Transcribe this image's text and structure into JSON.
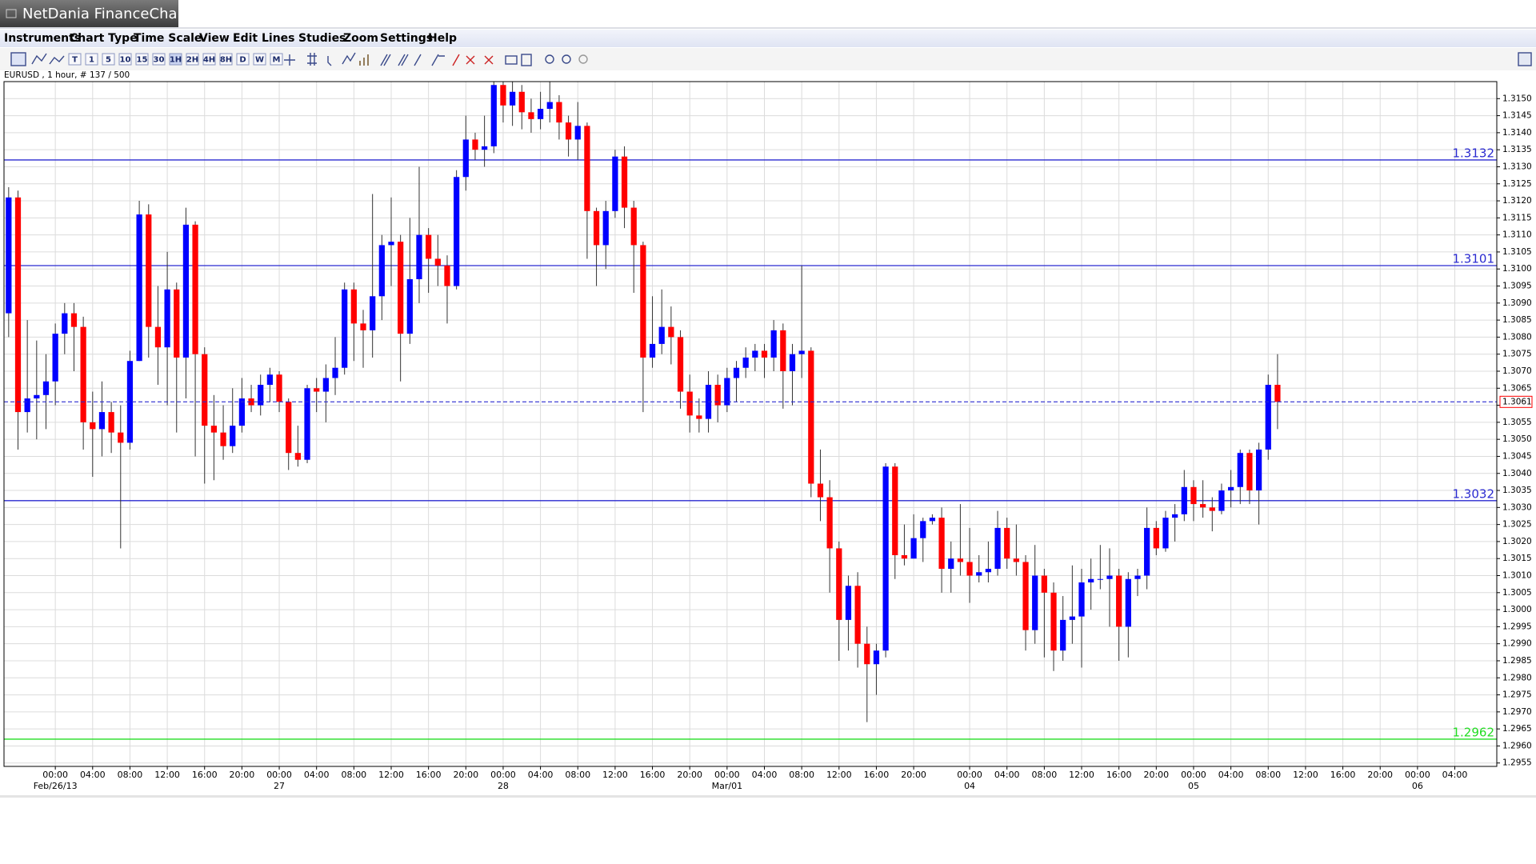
{
  "window": {
    "title": "NetDania FinanceChart"
  },
  "menu": [
    "Instruments",
    "Chart Type",
    "Time Scale",
    "View",
    "Edit",
    "Lines",
    "Studies",
    "Zoom",
    "Settings",
    "Help"
  ],
  "toolbar": [
    "T",
    "1",
    "5",
    "10",
    "15",
    "30",
    "1H",
    "2H",
    "4H",
    "8H",
    "D",
    "W",
    "M"
  ],
  "chart_data": {
    "type": "candlestick",
    "subtitle": "EURUSD , 1 hour, # 137 / 500",
    "up_color": "#0000ff",
    "down_color": "#ff0000",
    "grid": true,
    "open": [
      1.3087,
      1.3121,
      1.3058,
      1.3062,
      1.3063,
      1.3067,
      1.3081,
      1.3087,
      1.3083,
      1.3055,
      1.3053,
      1.3058,
      1.3052,
      1.3049,
      1.3073,
      1.3116,
      1.3083,
      1.3077,
      1.3094,
      1.3074,
      1.3113,
      1.3075,
      1.3054,
      1.3052,
      1.3048,
      1.3054,
      1.3062,
      1.306,
      1.3066,
      1.3069,
      1.3061,
      1.3046,
      1.3044,
      1.3065,
      1.3064,
      1.3068,
      1.3071,
      1.3094,
      1.3084,
      1.3082,
      1.3092,
      1.3107,
      1.3108,
      1.3081,
      1.3097,
      1.311,
      1.3103,
      1.3101,
      1.3095,
      1.3127,
      1.3138,
      1.3135,
      1.3136,
      1.3154,
      1.3148,
      1.3152,
      1.3146,
      1.3144,
      1.3147,
      1.3149,
      1.3143,
      1.3138,
      1.3142,
      1.3117,
      1.3107,
      1.3117,
      1.3133,
      1.3118,
      1.3107,
      1.3074,
      1.3078,
      1.3083,
      1.308,
      1.3064,
      1.3057,
      1.3056,
      1.3066,
      1.306,
      1.3068,
      1.3071,
      1.3074,
      1.3076,
      1.3074,
      1.3082,
      1.307,
      1.3075,
      1.3076,
      1.3037,
      1.3033,
      1.3018,
      1.2997,
      1.3007,
      1.299,
      1.2984,
      1.2988,
      1.3042,
      1.3016,
      1.3015,
      1.3021,
      1.3026,
      1.3027,
      1.3012,
      1.3015,
      1.3014,
      1.301,
      1.3011,
      1.3012,
      1.3024,
      1.3015,
      1.3014,
      1.2994,
      1.301,
      1.3005,
      1.2988,
      1.2997,
      1.2998,
      1.3008,
      1.3009,
      1.3009,
      1.301,
      1.2995,
      1.3009,
      1.301,
      1.3024,
      1.3018,
      1.3027,
      1.3028,
      1.3036,
      1.3031,
      1.303,
      1.3029,
      1.3035,
      1.3036,
      1.3046,
      1.3035,
      1.3047,
      1.3066
    ],
    "high": [
      1.3124,
      1.3123,
      1.3085,
      1.3079,
      1.3075,
      1.3084,
      1.309,
      1.309,
      1.3086,
      1.3064,
      1.3067,
      1.3061,
      1.306,
      1.3076,
      1.312,
      1.3119,
      1.3095,
      1.3105,
      1.3096,
      1.3118,
      1.3114,
      1.3077,
      1.3063,
      1.306,
      1.3065,
      1.3068,
      1.3066,
      1.3069,
      1.3071,
      1.307,
      1.3062,
      1.3054,
      1.3066,
      1.3068,
      1.3072,
      1.308,
      1.3096,
      1.3096,
      1.3088,
      1.3122,
      1.311,
      1.3121,
      1.311,
      1.3115,
      1.313,
      1.3112,
      1.311,
      1.3104,
      1.3129,
      1.3145,
      1.314,
      1.3145,
      1.3155,
      1.3155,
      1.3155,
      1.3154,
      1.315,
      1.3152,
      1.3155,
      1.3151,
      1.3145,
      1.3149,
      1.3143,
      1.3118,
      1.312,
      1.3135,
      1.3136,
      1.312,
      1.3108,
      1.3092,
      1.3094,
      1.3089,
      1.3082,
      1.3069,
      1.3062,
      1.307,
      1.3069,
      1.3071,
      1.3073,
      1.3077,
      1.3078,
      1.3078,
      1.3085,
      1.3084,
      1.3078,
      1.3101,
      1.3077,
      1.3047,
      1.3038,
      1.302,
      1.301,
      1.3011,
      1.2995,
      1.299,
      1.3043,
      1.3043,
      1.3025,
      1.3028,
      1.3027,
      1.3028,
      1.303,
      1.302,
      1.3031,
      1.3024,
      1.3016,
      1.302,
      1.3029,
      1.3027,
      1.3025,
      1.3016,
      1.3019,
      1.3012,
      1.3008,
      1.3004,
      1.3013,
      1.3012,
      1.3015,
      1.3019,
      1.3018,
      1.3012,
      1.3011,
      1.3012,
      1.303,
      1.3026,
      1.3029,
      1.3031,
      1.3041,
      1.3038,
      1.3038,
      1.3033,
      1.3037,
      1.3041,
      1.3047,
      1.3047,
      1.3049,
      1.3069,
      1.3075
    ],
    "low": [
      1.308,
      1.3047,
      1.3052,
      1.305,
      1.3053,
      1.306,
      1.3075,
      1.307,
      1.3047,
      1.3039,
      1.3045,
      1.3046,
      1.3018,
      1.3047,
      1.3073,
      1.3074,
      1.3066,
      1.306,
      1.3052,
      1.3062,
      1.3045,
      1.3037,
      1.3038,
      1.3044,
      1.3046,
      1.3052,
      1.3058,
      1.3057,
      1.3061,
      1.3058,
      1.3041,
      1.3042,
      1.3043,
      1.3058,
      1.3055,
      1.3063,
      1.3069,
      1.3073,
      1.3071,
      1.3074,
      1.3085,
      1.3095,
      1.3067,
      1.3078,
      1.309,
      1.3093,
      1.3095,
      1.3084,
      1.3094,
      1.3123,
      1.3132,
      1.313,
      1.3134,
      1.3143,
      1.3142,
      1.3141,
      1.314,
      1.3141,
      1.3143,
      1.3138,
      1.3133,
      1.3132,
      1.3103,
      1.3095,
      1.31,
      1.3115,
      1.3112,
      1.3093,
      1.3058,
      1.3071,
      1.3075,
      1.3072,
      1.3059,
      1.3052,
      1.3052,
      1.3052,
      1.3055,
      1.3058,
      1.3061,
      1.3068,
      1.307,
      1.3068,
      1.307,
      1.3059,
      1.306,
      1.3068,
      1.3033,
      1.3026,
      1.3005,
      1.2985,
      1.2988,
      1.2983,
      1.2967,
      1.2975,
      1.2986,
      1.3009,
      1.3013,
      1.3015,
      1.3014,
      1.3025,
      1.3005,
      1.3005,
      1.301,
      1.3002,
      1.3008,
      1.3008,
      1.301,
      1.3012,
      1.301,
      1.2988,
      1.299,
      1.2986,
      1.2982,
      1.2985,
      1.299,
      1.2983,
      1.3,
      1.3006,
      1.2995,
      1.2985,
      1.2986,
      1.3004,
      1.3006,
      1.3016,
      1.3017,
      1.302,
      1.3026,
      1.3026,
      1.3027,
      1.3023,
      1.3028,
      1.303,
      1.3031,
      1.3031,
      1.3025,
      1.3044,
      1.3053
    ],
    "close": [
      1.3121,
      1.3058,
      1.3062,
      1.3063,
      1.3067,
      1.3081,
      1.3087,
      1.3083,
      1.3055,
      1.3053,
      1.3058,
      1.3052,
      1.3049,
      1.3073,
      1.3116,
      1.3083,
      1.3077,
      1.3094,
      1.3074,
      1.3113,
      1.3075,
      1.3054,
      1.3052,
      1.3048,
      1.3054,
      1.3062,
      1.306,
      1.3066,
      1.3069,
      1.3061,
      1.3046,
      1.3044,
      1.3065,
      1.3064,
      1.3068,
      1.3071,
      1.3094,
      1.3084,
      1.3082,
      1.3092,
      1.3107,
      1.3108,
      1.3081,
      1.3097,
      1.311,
      1.3103,
      1.3101,
      1.3095,
      1.3127,
      1.3138,
      1.3135,
      1.3136,
      1.3154,
      1.3148,
      1.3152,
      1.3146,
      1.3144,
      1.3147,
      1.3149,
      1.3143,
      1.3138,
      1.3142,
      1.3117,
      1.3107,
      1.3117,
      1.3133,
      1.3118,
      1.3107,
      1.3074,
      1.3078,
      1.3083,
      1.308,
      1.3064,
      1.3057,
      1.3056,
      1.3066,
      1.306,
      1.3068,
      1.3071,
      1.3074,
      1.3076,
      1.3074,
      1.3082,
      1.307,
      1.3075,
      1.3076,
      1.3037,
      1.3033,
      1.3018,
      1.2997,
      1.3007,
      1.299,
      1.2984,
      1.2988,
      1.3042,
      1.3016,
      1.3015,
      1.3021,
      1.3026,
      1.3027,
      1.3012,
      1.3015,
      1.3014,
      1.301,
      1.3011,
      1.3012,
      1.3024,
      1.3015,
      1.3014,
      1.2994,
      1.301,
      1.3005,
      1.2988,
      1.2997,
      1.2998,
      1.3008,
      1.3009,
      1.3009,
      1.301,
      1.2995,
      1.3009,
      1.301,
      1.3024,
      1.3018,
      1.3027,
      1.3028,
      1.3036,
      1.3031,
      1.303,
      1.3029,
      1.3035,
      1.3036,
      1.3046,
      1.3035,
      1.3047,
      1.3066,
      1.3061
    ],
    "ylim": [
      1.2954,
      1.3155
    ],
    "yticks": [
      1.2955,
      {
        "value": 1.296,
        "label": "1.2960"
      },
      1.2965,
      {
        "value": 1.297,
        "label": "1.2970"
      },
      1.2975,
      {
        "value": 1.298,
        "label": "1.2980"
      },
      1.2985,
      {
        "value": 1.299,
        "label": "1.2990"
      },
      1.2995,
      {
        "value": 1.3,
        "label": "1.3000"
      },
      1.3005,
      {
        "value": 1.301,
        "label": "1.3010"
      },
      1.3015,
      {
        "value": 1.302,
        "label": "1.3020"
      },
      1.3025,
      {
        "value": 1.303,
        "label": "1.3030"
      },
      1.3035,
      {
        "value": 1.304,
        "label": "1.3040"
      },
      1.3045,
      {
        "value": 1.305,
        "label": "1.3050"
      },
      1.3055,
      {
        "value": 1.306,
        "label": "1.3060"
      },
      1.3065,
      {
        "value": 1.307,
        "label": "1.3070"
      },
      1.3075,
      {
        "value": 1.308,
        "label": "1.3080"
      },
      1.3085,
      {
        "value": 1.309,
        "label": "1.3090"
      },
      1.3095,
      {
        "value": 1.31,
        "label": "1.3100"
      },
      1.3105,
      {
        "value": 1.311,
        "label": "1.3110"
      },
      1.3115,
      {
        "value": 1.312,
        "label": "1.3120"
      },
      1.3125,
      {
        "value": 1.313,
        "label": "1.3130"
      },
      1.3135,
      {
        "value": 1.314,
        "label": "1.3140"
      },
      1.3145,
      {
        "value": 1.315,
        "label": "1.3150"
      }
    ],
    "xticks": [
      {
        "value": 5,
        "label": "00:00"
      },
      {
        "value": 9,
        "label": "04:00"
      },
      {
        "value": 13,
        "label": "08:00"
      },
      {
        "value": 17,
        "label": "12:00"
      },
      {
        "value": 21,
        "label": "16:00"
      },
      {
        "value": 25,
        "label": "20:00"
      },
      {
        "value": 29,
        "label": "00:00"
      },
      {
        "value": 33,
        "label": "04:00"
      },
      {
        "value": 37,
        "label": "08:00"
      },
      {
        "value": 41,
        "label": "12:00"
      },
      {
        "value": 45,
        "label": "16:00"
      },
      {
        "value": 49,
        "label": "20:00"
      },
      {
        "value": 53,
        "label": "00:00"
      },
      {
        "value": 57,
        "label": "04:00"
      },
      {
        "value": 61,
        "label": "08:00"
      },
      {
        "value": 65,
        "label": "12:00"
      },
      {
        "value": 69,
        "label": "16:00"
      },
      {
        "value": 73,
        "label": "20:00"
      },
      {
        "value": 77,
        "label": "00:00"
      },
      {
        "value": 81,
        "label": "04:00"
      },
      {
        "value": 85,
        "label": "08:00"
      },
      {
        "value": 89,
        "label": "12:00"
      },
      {
        "value": 93,
        "label": "16:00"
      },
      {
        "value": 97,
        "label": "20:00"
      },
      {
        "value": 103,
        "label": "00:00"
      },
      {
        "value": 107,
        "label": "04:00"
      },
      {
        "value": 111,
        "label": "08:00"
      },
      {
        "value": 115,
        "label": "12:00"
      },
      {
        "value": 119,
        "label": "16:00"
      },
      {
        "value": 123,
        "label": "20:00"
      },
      {
        "value": 127,
        "label": "00:00"
      },
      {
        "value": 131,
        "label": "04:00"
      },
      {
        "value": 135,
        "label": "08:00"
      },
      {
        "value": 139,
        "label": "12:00"
      },
      {
        "value": 143,
        "label": "16:00"
      },
      {
        "value": 147,
        "label": "20:00"
      },
      {
        "value": 151,
        "label": "00:00"
      },
      {
        "value": 155,
        "label": "04:00"
      }
    ],
    "xticks2": [
      {
        "value": 5,
        "label": "Feb/26/13"
      },
      {
        "value": 29,
        "label": "27"
      },
      {
        "value": 53,
        "label": "28"
      },
      {
        "value": 77,
        "label": "Mar/01"
      },
      {
        "value": 103,
        "label": "04"
      },
      {
        "value": 127,
        "label": "05"
      },
      {
        "value": 151,
        "label": "06"
      }
    ],
    "hlines": [
      {
        "value": 1.3132,
        "color": "#2a2ad0"
      },
      {
        "value": 1.3101,
        "color": "#2a2ad0"
      },
      {
        "value": 1.3032,
        "color": "#2a2ad0"
      },
      {
        "value": 1.2962,
        "color": "#22dd22"
      }
    ],
    "last_price": {
      "value": 1.3061,
      "color": "#ff0000"
    }
  }
}
